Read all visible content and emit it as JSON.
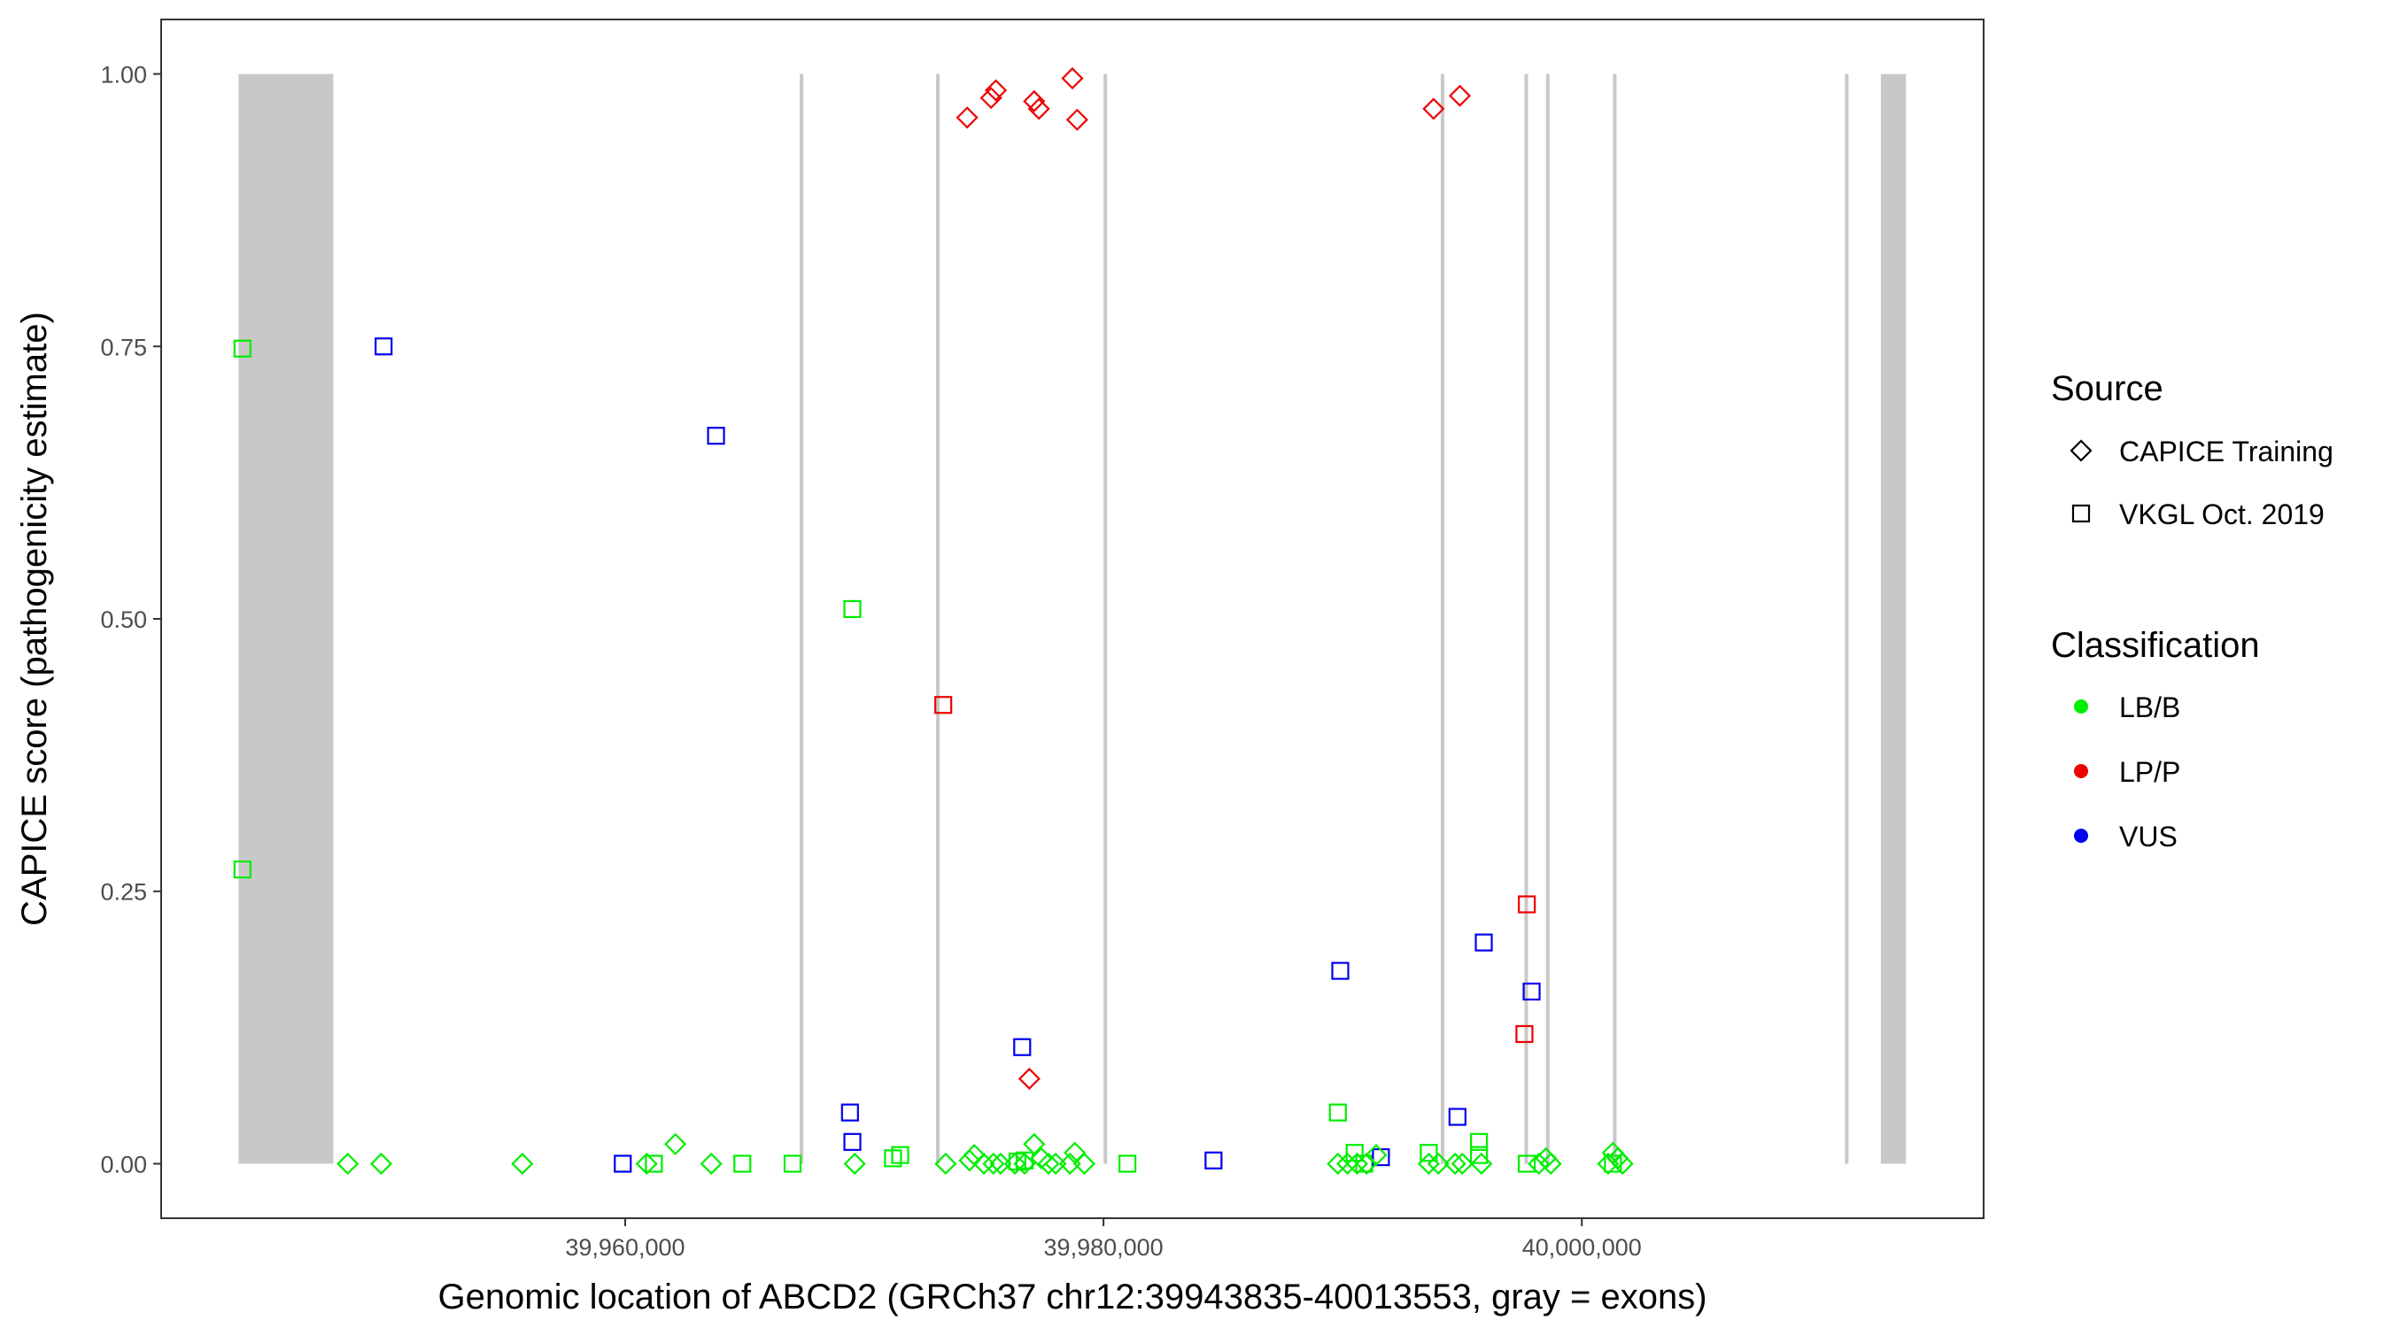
{
  "chart_data": {
    "type": "scatter",
    "xlabel": "Genomic location of ABCD2 (GRCh37 chr12:39943835-40013553, gray = exons)",
    "ylabel": "CAPICE score (pathogenicity estimate)",
    "xlim": [
      39940600,
      40016800
    ],
    "ylim": [
      -0.05,
      1.05
    ],
    "x_ticks": [
      {
        "value": 39960000,
        "label": "39,960,000"
      },
      {
        "value": 39980000,
        "label": "39,980,000"
      },
      {
        "value": 40000000,
        "label": "40,000,000"
      }
    ],
    "y_ticks": [
      {
        "value": 0.0,
        "label": "0.00"
      },
      {
        "value": 0.25,
        "label": "0.25"
      },
      {
        "value": 0.5,
        "label": "0.50"
      },
      {
        "value": 0.75,
        "label": "0.75"
      },
      {
        "value": 1.0,
        "label": "1.00"
      }
    ],
    "grid": false,
    "legend_position": "right",
    "exon_color": "#c8c8c8",
    "exons": [
      {
        "start": 39943835,
        "end": 39947800
      },
      {
        "start": 39967300,
        "end": 39967450
      },
      {
        "start": 39973000,
        "end": 39973150
      },
      {
        "start": 39980000,
        "end": 39980150
      },
      {
        "start": 39994100,
        "end": 39994250
      },
      {
        "start": 39997600,
        "end": 39997750
      },
      {
        "start": 39998500,
        "end": 39998650
      },
      {
        "start": 40001300,
        "end": 40001450
      },
      {
        "start": 40011000,
        "end": 40011150
      },
      {
        "start": 40012500,
        "end": 40013553
      }
    ],
    "legends": {
      "source": {
        "title": "Source",
        "items": [
          {
            "label": "CAPICE Training",
            "shape": "diamond"
          },
          {
            "label": "VKGL Oct. 2019",
            "shape": "square"
          }
        ]
      },
      "classification": {
        "title": "Classification",
        "items": [
          {
            "label": "LB/B",
            "color": "#00ee00"
          },
          {
            "label": "LP/P",
            "color": "#ee0000"
          },
          {
            "label": "VUS",
            "color": "#0000ee"
          }
        ]
      }
    },
    "series": [
      {
        "source": "VKGL Oct. 2019",
        "classification": "LB/B",
        "shape": "square",
        "color": "#00ee00",
        "points": [
          [
            39944000,
            0.748
          ],
          [
            39944000,
            0.27
          ],
          [
            39969500,
            0.509
          ],
          [
            39989800,
            0.047
          ],
          [
            39961200,
            0.0
          ],
          [
            39964900,
            0.0
          ],
          [
            39967000,
            0.0
          ],
          [
            39971200,
            0.005
          ],
          [
            39971500,
            0.008
          ],
          [
            39976400,
            0.002
          ],
          [
            39976700,
            0.003
          ],
          [
            39981000,
            0.0
          ],
          [
            39990500,
            0.01
          ],
          [
            39990900,
            0.0
          ],
          [
            39993600,
            0.01
          ],
          [
            39995700,
            0.02
          ],
          [
            39995700,
            0.008
          ],
          [
            39997700,
            0.0
          ],
          [
            40001300,
            0.0
          ]
        ]
      },
      {
        "source": "VKGL Oct. 2019",
        "classification": "LP/P",
        "shape": "square",
        "color": "#ee0000",
        "points": [
          [
            39973300,
            0.421
          ],
          [
            39997700,
            0.238
          ],
          [
            39997600,
            0.119
          ]
        ]
      },
      {
        "source": "VKGL Oct. 2019",
        "classification": "VUS",
        "shape": "square",
        "color": "#0000ee",
        "points": [
          [
            39949900,
            0.75
          ],
          [
            39963800,
            0.668
          ],
          [
            39976600,
            0.107
          ],
          [
            39969400,
            0.047
          ],
          [
            39969500,
            0.02
          ],
          [
            39959900,
            0.0
          ],
          [
            39984600,
            0.003
          ],
          [
            39989900,
            0.177
          ],
          [
            39995900,
            0.203
          ],
          [
            39997900,
            0.158
          ],
          [
            39994800,
            0.043
          ],
          [
            39991600,
            0.006
          ]
        ]
      },
      {
        "source": "CAPICE Training",
        "classification": "LB/B",
        "shape": "diamond",
        "color": "#00ee00",
        "points": [
          [
            39948400,
            0.0
          ],
          [
            39949800,
            0.0
          ],
          [
            39955700,
            0.0
          ],
          [
            39960900,
            0.0
          ],
          [
            39962100,
            0.018
          ],
          [
            39963600,
            0.0
          ],
          [
            39969600,
            0.0
          ],
          [
            39973400,
            0.0
          ],
          [
            39974400,
            0.003
          ],
          [
            39974600,
            0.008
          ],
          [
            39975000,
            0.0
          ],
          [
            39975400,
            0.0
          ],
          [
            39975700,
            0.0
          ],
          [
            39976300,
            0.0
          ],
          [
            39976700,
            0.0
          ],
          [
            39977100,
            0.018
          ],
          [
            39977400,
            0.005
          ],
          [
            39977700,
            0.0
          ],
          [
            39978000,
            0.0
          ],
          [
            39978600,
            0.0
          ],
          [
            39978800,
            0.01
          ],
          [
            39979200,
            0.0
          ],
          [
            39989800,
            0.0
          ],
          [
            39990200,
            0.0
          ],
          [
            39990600,
            0.0
          ],
          [
            39991000,
            0.0
          ],
          [
            39991400,
            0.008
          ],
          [
            39993600,
            0.0
          ],
          [
            39994000,
            0.0
          ],
          [
            39994700,
            0.0
          ],
          [
            39995000,
            0.0
          ],
          [
            39995800,
            0.0
          ],
          [
            39998200,
            0.0
          ],
          [
            39998500,
            0.005
          ],
          [
            39998700,
            0.0
          ],
          [
            40001100,
            0.0
          ],
          [
            40001300,
            0.01
          ],
          [
            40001500,
            0.005
          ],
          [
            40001700,
            0.0
          ]
        ]
      },
      {
        "source": "CAPICE Training",
        "classification": "LP/P",
        "shape": "diamond",
        "color": "#ee0000",
        "points": [
          [
            39974300,
            0.96
          ],
          [
            39975300,
            0.978
          ],
          [
            39975500,
            0.985
          ],
          [
            39977100,
            0.975
          ],
          [
            39977300,
            0.968
          ],
          [
            39978700,
            0.996
          ],
          [
            39978900,
            0.958
          ],
          [
            39993800,
            0.968
          ],
          [
            39994900,
            0.98
          ],
          [
            39976900,
            0.078
          ]
        ]
      }
    ]
  }
}
